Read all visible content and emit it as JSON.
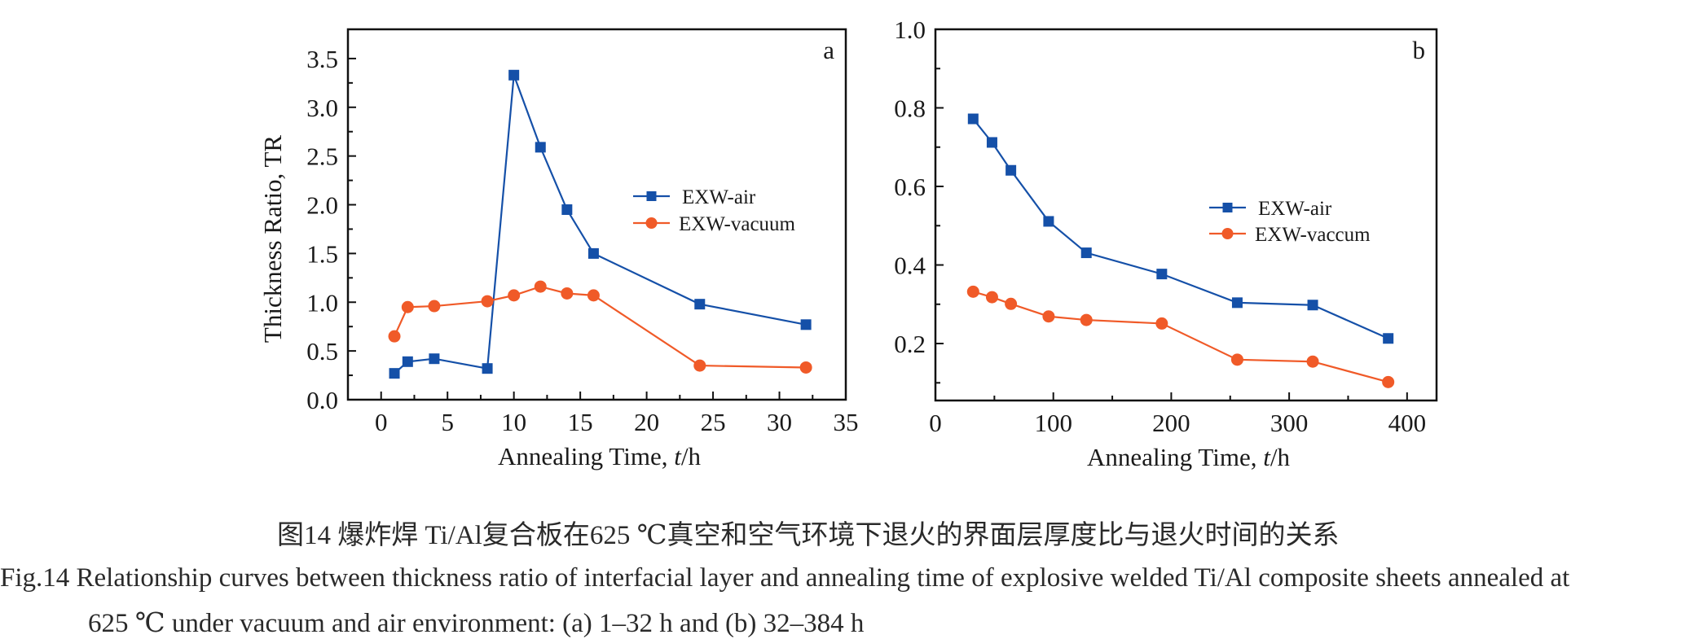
{
  "chart_data": [
    {
      "type": "line",
      "panel_label": "a",
      "title": "",
      "xlabel": "Annealing Time, t/h",
      "xlabel_plain": "Annealing Time, ",
      "xlabel_italic": "t",
      "xlabel_unit": "/h",
      "ylabel": "Thickness Ratio, TR",
      "xlim": [
        -2.5,
        35
      ],
      "ylim": [
        0,
        3.8
      ],
      "xticks": [
        0,
        5,
        10,
        15,
        20,
        25,
        30,
        35
      ],
      "xtick_labels": [
        "0",
        "5",
        "10",
        "15",
        "20",
        "25",
        "30",
        "35"
      ],
      "xminor": [
        2.5,
        7.5,
        12.5,
        17.5,
        22.5,
        27.5,
        32.5
      ],
      "yticks": [
        0.0,
        0.5,
        1.0,
        1.5,
        2.0,
        2.5,
        3.0,
        3.5
      ],
      "ytick_labels": [
        "0.0",
        "0.5",
        "1.0",
        "1.5",
        "2.0",
        "2.5",
        "3.0",
        "3.5"
      ],
      "yminor": [
        0.25,
        0.75,
        1.25,
        1.75,
        2.25,
        2.75,
        3.25
      ],
      "grid": false,
      "legend_position": "center-right",
      "x": [
        1,
        2,
        4,
        8,
        10,
        12,
        14,
        16,
        24,
        32
      ],
      "series": [
        {
          "name": "EXW-air",
          "marker": "square",
          "color": "#1550a8",
          "values": [
            0.27,
            0.39,
            0.42,
            0.32,
            3.33,
            2.59,
            1.95,
            1.5,
            0.98,
            0.77
          ]
        },
        {
          "name": "EXW-vacuum",
          "marker": "circle",
          "color": "#f05a28",
          "values": [
            0.65,
            0.95,
            0.96,
            1.01,
            1.07,
            1.16,
            1.09,
            1.07,
            0.35,
            0.33
          ]
        }
      ]
    },
    {
      "type": "line",
      "panel_label": "b",
      "title": "",
      "xlabel": "Annealing Time, t/h",
      "xlabel_plain": "Annealing Time, ",
      "xlabel_italic": "t",
      "xlabel_unit": "/h",
      "ylabel": "",
      "xlim": [
        0,
        425
      ],
      "ylim": [
        0.055,
        1.0
      ],
      "xticks": [
        0,
        100,
        200,
        300,
        400
      ],
      "xtick_labels": [
        "0",
        "100",
        "200",
        "300",
        "400"
      ],
      "xminor": [
        50,
        150,
        250,
        350
      ],
      "yticks": [
        0.2,
        0.4,
        0.6,
        0.8,
        1.0
      ],
      "ytick_labels": [
        "0.2",
        "0.4",
        "0.6",
        "0.8",
        "1.0"
      ],
      "yminor": [
        0.1,
        0.3,
        0.5,
        0.7,
        0.9
      ],
      "grid": false,
      "legend_position": "center-right",
      "x": [
        32,
        48,
        64,
        96,
        128,
        192,
        256,
        320,
        384
      ],
      "series": [
        {
          "name": "EXW-air",
          "marker": "square",
          "color": "#1550a8",
          "values": [
            0.772,
            0.712,
            0.641,
            0.511,
            0.431,
            0.377,
            0.304,
            0.298,
            0.213
          ]
        },
        {
          "name": "EXW-vaccum",
          "marker": "circle",
          "color": "#f05a28",
          "values": [
            0.332,
            0.318,
            0.301,
            0.269,
            0.26,
            0.251,
            0.159,
            0.154,
            0.102
          ]
        }
      ]
    }
  ],
  "caption": {
    "chinese": "图14  爆炸焊 Ti/Al复合板在625 ℃真空和空气环境下退火的界面层厚度比与退火时间的关系",
    "english_line1": "Fig.14  Relationship curves between thickness ratio of interfacial layer and annealing time of explosive welded Ti/Al composite sheets annealed at",
    "english_line2": "625 ℃ under vacuum and air environment: (a) 1–32 h and (b) 32–384 h"
  }
}
